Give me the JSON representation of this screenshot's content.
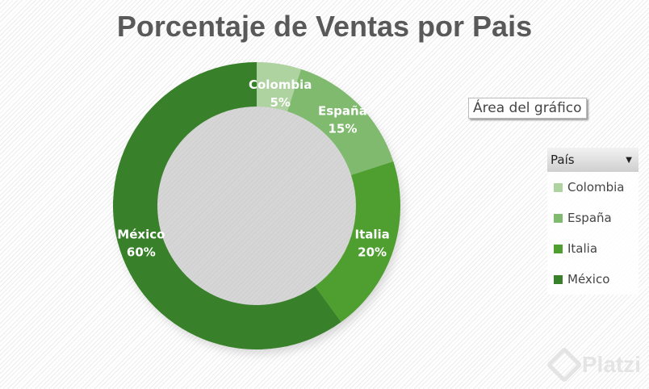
{
  "chart_data": {
    "type": "pie",
    "donut": true,
    "title": "Porcentaje de Ventas por Pais",
    "categories": [
      "Colombia",
      "España",
      "Italia",
      "México"
    ],
    "values": [
      5,
      15,
      20,
      60
    ],
    "data_labels": [
      "5%",
      "15%",
      "20%",
      "60%"
    ],
    "colors": [
      "#aed2a0",
      "#7fba6f",
      "#4f9f30",
      "#38812a"
    ],
    "legend": {
      "title": "País",
      "placement": "right"
    }
  },
  "tooltip": "Área del gráfico",
  "watermark": "Platzi"
}
